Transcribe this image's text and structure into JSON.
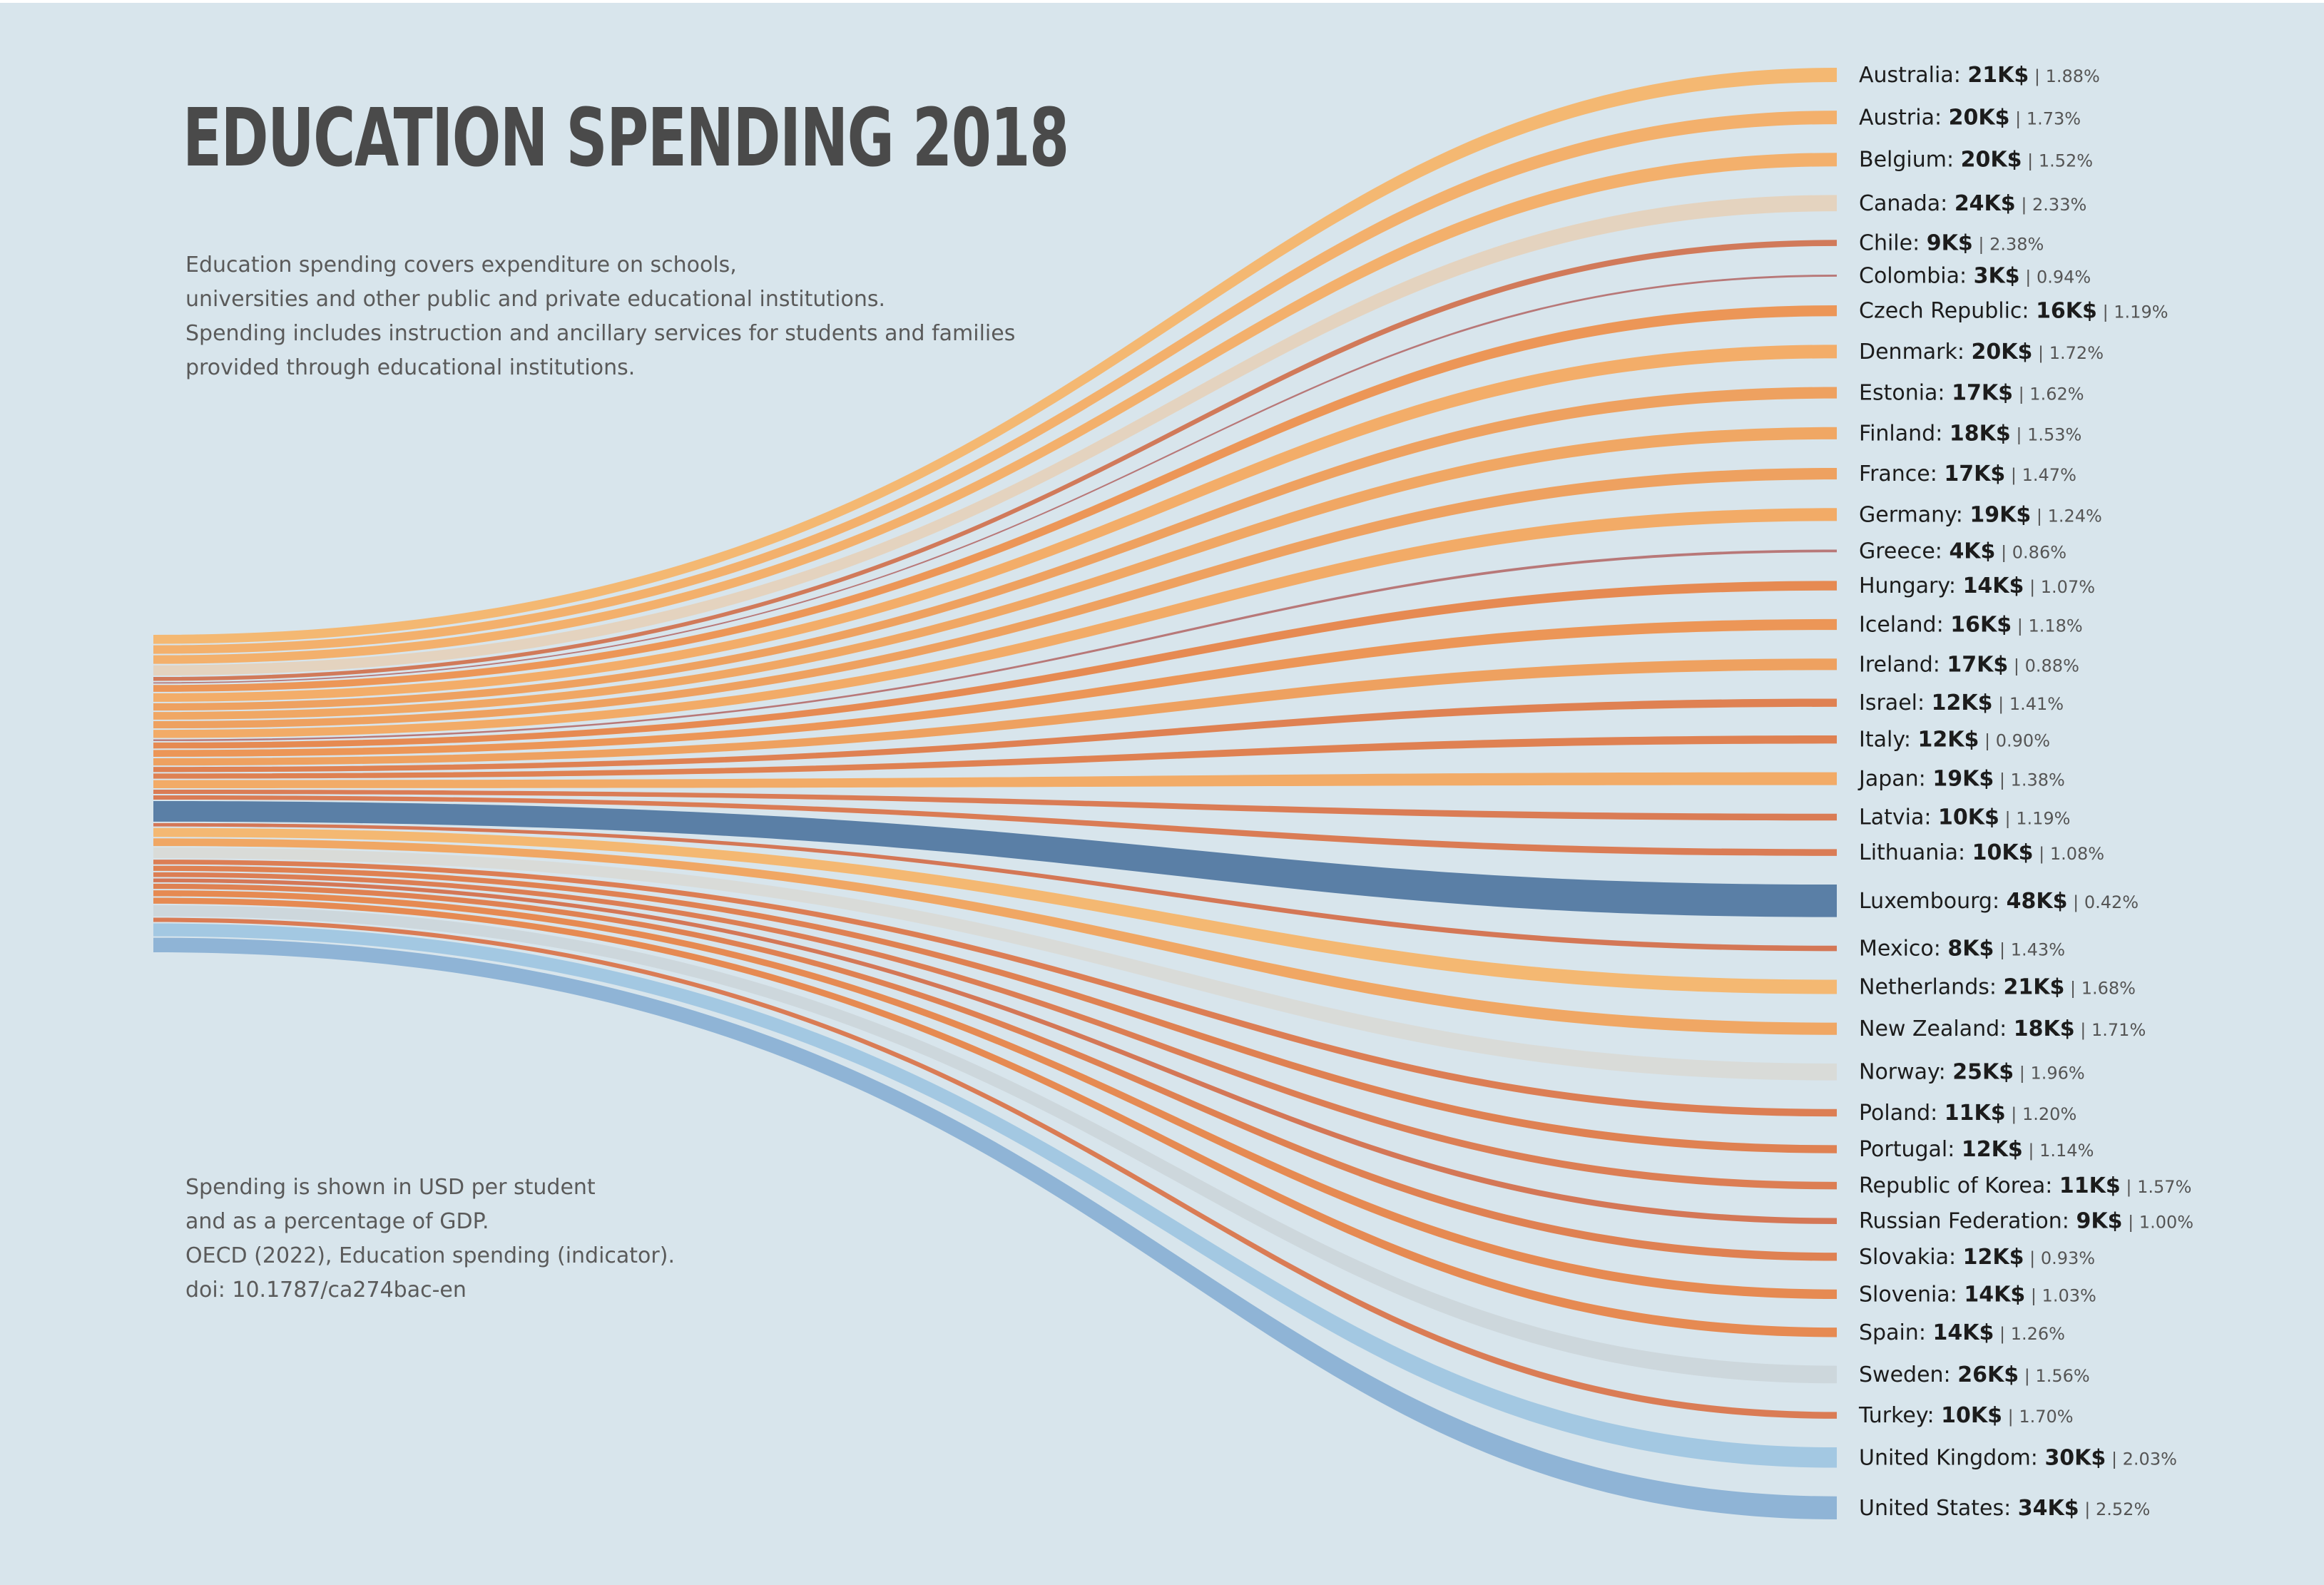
{
  "title": "EDUCATION SPENDING 2018",
  "description": [
    "Education spending covers expenditure on schools,",
    "universities and other public and private educational institutions.",
    "Spending includes instruction and ancillary services for students and families",
    "provided through educational institutions."
  ],
  "source": [
    "Spending is shown in USD per student",
    "and as a percentage of GDP.",
    "OECD (2022), Education spending (indicator).",
    "doi: 10.1787/ca274bac-en"
  ],
  "chart_data": {
    "type": "sankey",
    "title": "EDUCATION SPENDING 2018",
    "value_unit": "K$",
    "secondary_unit": "%",
    "countries": [
      {
        "name": "Australia",
        "value": 21,
        "value_label": "21K$",
        "pct": 1.88,
        "pct_label": "1.88%",
        "color": "#f4b872"
      },
      {
        "name": "Austria",
        "value": 20,
        "value_label": "20K$",
        "pct": 1.73,
        "pct_label": "1.73%",
        "color": "#f3b06c"
      },
      {
        "name": "Belgium",
        "value": 20,
        "value_label": "20K$",
        "pct": 1.52,
        "pct_label": "1.52%",
        "color": "#f3b06c"
      },
      {
        "name": "Canada",
        "value": 24,
        "value_label": "24K$",
        "pct": 2.33,
        "pct_label": "2.33%",
        "color": "#e4d3bf"
      },
      {
        "name": "Chile",
        "value": 9,
        "value_label": "9K$",
        "pct": 2.38,
        "pct_label": "2.38%",
        "color": "#d17a5a"
      },
      {
        "name": "Colombia",
        "value": 3,
        "value_label": "3K$",
        "pct": 0.94,
        "pct_label": "0.94%",
        "color": "#b87878"
      },
      {
        "name": "Czech Republic",
        "value": 16,
        "value_label": "16K$",
        "pct": 1.19,
        "pct_label": "1.19%",
        "color": "#ec9657"
      },
      {
        "name": "Denmark",
        "value": 20,
        "value_label": "20K$",
        "pct": 1.72,
        "pct_label": "1.72%",
        "color": "#f3ad69"
      },
      {
        "name": "Estonia",
        "value": 17,
        "value_label": "17K$",
        "pct": 1.62,
        "pct_label": "1.62%",
        "color": "#eea160"
      },
      {
        "name": "Finland",
        "value": 18,
        "value_label": "18K$",
        "pct": 1.53,
        "pct_label": "1.53%",
        "color": "#f0a764"
      },
      {
        "name": "France",
        "value": 17,
        "value_label": "17K$",
        "pct": 1.47,
        "pct_label": "1.47%",
        "color": "#eea160"
      },
      {
        "name": "Germany",
        "value": 19,
        "value_label": "19K$",
        "pct": 1.24,
        "pct_label": "1.24%",
        "color": "#f2ab67"
      },
      {
        "name": "Greece",
        "value": 4,
        "value_label": "4K$",
        "pct": 0.86,
        "pct_label": "0.86%",
        "color": "#b87878"
      },
      {
        "name": "Hungary",
        "value": 14,
        "value_label": "14K$",
        "pct": 1.07,
        "pct_label": "1.07%",
        "color": "#e68a52"
      },
      {
        "name": "Iceland",
        "value": 16,
        "value_label": "16K$",
        "pct": 1.18,
        "pct_label": "1.18%",
        "color": "#ec9657"
      },
      {
        "name": "Ireland",
        "value": 17,
        "value_label": "17K$",
        "pct": 0.88,
        "pct_label": "0.88%",
        "color": "#eea160"
      },
      {
        "name": "Israel",
        "value": 12,
        "value_label": "12K$",
        "pct": 1.41,
        "pct_label": "1.41%",
        "color": "#df8152"
      },
      {
        "name": "Italy",
        "value": 12,
        "value_label": "12K$",
        "pct": 0.9,
        "pct_label": "0.90%",
        "color": "#df8152"
      },
      {
        "name": "Japan",
        "value": 19,
        "value_label": "19K$",
        "pct": 1.38,
        "pct_label": "1.38%",
        "color": "#f2ab67"
      },
      {
        "name": "Latvia",
        "value": 10,
        "value_label": "10K$",
        "pct": 1.19,
        "pct_label": "1.19%",
        "color": "#da7c55"
      },
      {
        "name": "Lithuania",
        "value": 10,
        "value_label": "10K$",
        "pct": 1.08,
        "pct_label": "1.08%",
        "color": "#da7c55"
      },
      {
        "name": "Luxembourg",
        "value": 48,
        "value_label": "48K$",
        "pct": 0.42,
        "pct_label": "0.42%",
        "color": "#5a7fa6"
      },
      {
        "name": "Mexico",
        "value": 8,
        "value_label": "8K$",
        "pct": 1.43,
        "pct_label": "1.43%",
        "color": "#d47756"
      },
      {
        "name": "Netherlands",
        "value": 21,
        "value_label": "21K$",
        "pct": 1.68,
        "pct_label": "1.68%",
        "color": "#f4b872"
      },
      {
        "name": "New Zealand",
        "value": 18,
        "value_label": "18K$",
        "pct": 1.71,
        "pct_label": "1.71%",
        "color": "#f0a764"
      },
      {
        "name": "Norway",
        "value": 25,
        "value_label": "25K$",
        "pct": 1.96,
        "pct_label": "1.96%",
        "color": "#d9dbd8"
      },
      {
        "name": "Poland",
        "value": 11,
        "value_label": "11K$",
        "pct": 1.2,
        "pct_label": "1.20%",
        "color": "#dc7e54"
      },
      {
        "name": "Portugal",
        "value": 12,
        "value_label": "12K$",
        "pct": 1.14,
        "pct_label": "1.14%",
        "color": "#df8152"
      },
      {
        "name": "Republic of Korea",
        "value": 11,
        "value_label": "11K$",
        "pct": 1.57,
        "pct_label": "1.57%",
        "color": "#dc7e54"
      },
      {
        "name": "Russian Federation",
        "value": 9,
        "value_label": "9K$",
        "pct": 1.0,
        "pct_label": "1.00%",
        "color": "#d47756"
      },
      {
        "name": "Slovakia",
        "value": 12,
        "value_label": "12K$",
        "pct": 0.93,
        "pct_label": "0.93%",
        "color": "#df8152"
      },
      {
        "name": "Slovenia",
        "value": 14,
        "value_label": "14K$",
        "pct": 1.03,
        "pct_label": "1.03%",
        "color": "#e68a52"
      },
      {
        "name": "Spain",
        "value": 14,
        "value_label": "14K$",
        "pct": 1.26,
        "pct_label": "1.26%",
        "color": "#e68a52"
      },
      {
        "name": "Sweden",
        "value": 26,
        "value_label": "26K$",
        "pct": 1.56,
        "pct_label": "1.56%",
        "color": "#cdd7dc"
      },
      {
        "name": "Turkey",
        "value": 10,
        "value_label": "10K$",
        "pct": 1.7,
        "pct_label": "1.70%",
        "color": "#da7c55"
      },
      {
        "name": "United Kingdom",
        "value": 30,
        "value_label": "30K$",
        "pct": 2.03,
        "pct_label": "2.03%",
        "color": "#a3c8e2"
      },
      {
        "name": "United States",
        "value": 34,
        "value_label": "34K$",
        "pct": 2.52,
        "pct_label": "2.52%",
        "color": "#8fb4d6"
      }
    ]
  }
}
